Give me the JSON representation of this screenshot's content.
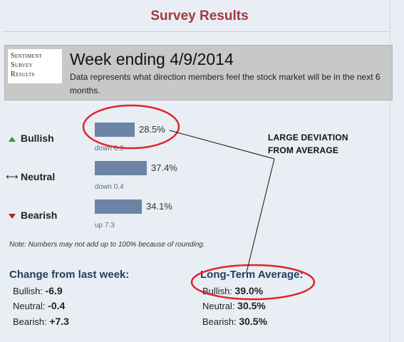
{
  "page_title": "Survey Results",
  "badge": {
    "line1": "Sentiment",
    "line2": "Survey",
    "line3": "Results"
  },
  "week": {
    "heading": "Week ending 4/9/2014",
    "description": "Data represents what direction members feel the stock market will be in the next 6 months."
  },
  "sentiment": [
    {
      "label": "Bullish",
      "icon": "up-triangle-icon",
      "percent_value": 28.5,
      "percent_label": "28.5%",
      "change": "down 6.9"
    },
    {
      "label": "Neutral",
      "icon": "left-right-arrow-icon",
      "percent_value": 37.4,
      "percent_label": "37.4%",
      "change": "down 0.4"
    },
    {
      "label": "Bearish",
      "icon": "down-triangle-icon",
      "percent_value": 34.1,
      "percent_label": "34.1%",
      "change": "up 7.3"
    }
  ],
  "note": "Note: Numbers may not add up to 100% because of rounding.",
  "change_from_last_week": {
    "heading": "Change from last week:",
    "rows": [
      {
        "label": "Bullish:",
        "value": "-6.9"
      },
      {
        "label": "Neutral:",
        "value": "-0.4"
      },
      {
        "label": "Bearish:",
        "value": "+7.3"
      }
    ]
  },
  "long_term_average": {
    "heading": "Long-Term Average:",
    "rows": [
      {
        "label": "Bullish:",
        "value": "39.0%"
      },
      {
        "label": "Neutral:",
        "value": "30.5%"
      },
      {
        "label": "Bearish:",
        "value": "30.5%"
      }
    ]
  },
  "annotation": {
    "line1": "LARGE DEVIATION",
    "line2": "FROM AVERAGE"
  },
  "colors": {
    "title": "#a0393d",
    "bar": "#6b84a6",
    "bullish_icon": "#2e9e3a",
    "bearish_icon": "#9b2b2b",
    "annotation_circle": "#e0232a",
    "stats_heading": "#1f3e5e"
  }
}
